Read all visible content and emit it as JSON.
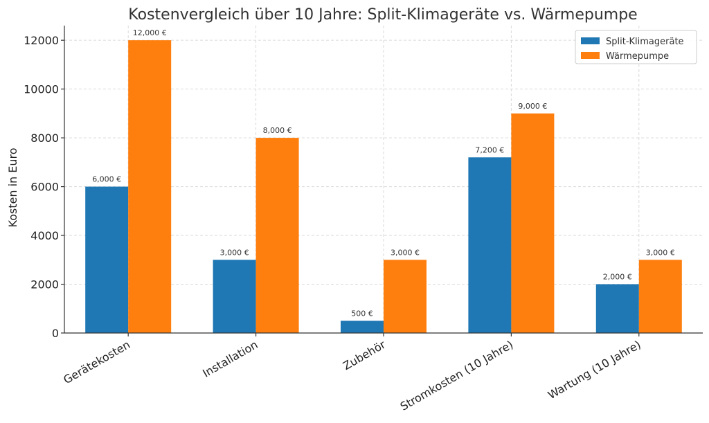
{
  "chart_data": {
    "type": "bar",
    "title": "Kostenvergleich über 10 Jahre: Split-Klimageräte vs. Wärmepumpe",
    "xlabel": "",
    "ylabel": "Kosten in Euro",
    "categories": [
      "Gerätekosten",
      "Installation",
      "Zubehör",
      "Stromkosten (10 Jahre)",
      "Wartung (10 Jahre)"
    ],
    "series": [
      {
        "name": "Split-Klimageräte",
        "color": "#1f77b4",
        "values": [
          6000,
          3000,
          500,
          7200,
          2000
        ],
        "labels": [
          "6,000 €",
          "3,000 €",
          "500 €",
          "7,200 €",
          "2,000 €"
        ]
      },
      {
        "name": "Wärmepumpe",
        "color": "#ff7f0e",
        "values": [
          12000,
          8000,
          3000,
          9000,
          3000
        ],
        "labels": [
          "12,000 €",
          "8,000 €",
          "3,000 €",
          "9,000 €",
          "3,000 €"
        ]
      }
    ],
    "ylim": [
      0,
      12600
    ],
    "yticks": [
      0,
      2000,
      4000,
      6000,
      8000,
      10000,
      12000
    ],
    "ytick_labels": [
      "0",
      "2000",
      "4000",
      "6000",
      "8000",
      "10000",
      "12000"
    ],
    "grid": true,
    "legend_position": "top-right"
  }
}
